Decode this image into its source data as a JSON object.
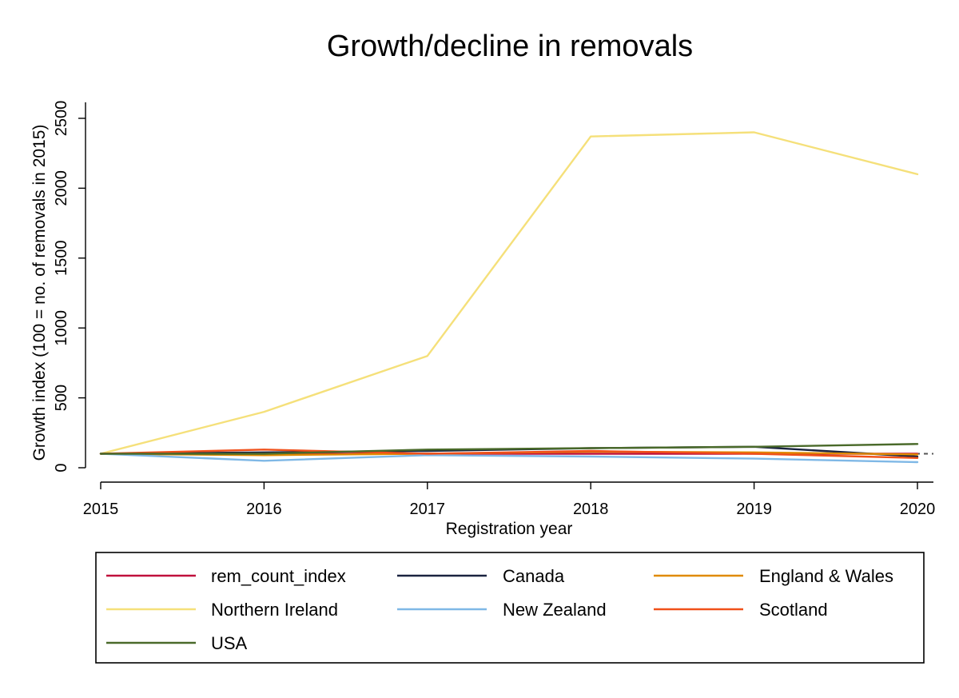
{
  "chart_data": {
    "type": "line",
    "title": "Growth/decline in removals",
    "xlabel": "Registration year",
    "ylabel": "Growth index (100 = no. of removals in 2015)",
    "x": [
      2015,
      2016,
      2017,
      2018,
      2019,
      2020
    ],
    "xticks": [
      "2015",
      "2016",
      "2017",
      "2018",
      "2019",
      "2020"
    ],
    "yticks": [
      "0",
      "500",
      "1000",
      "1500",
      "2000",
      "2500"
    ],
    "xlim": [
      2015,
      2020
    ],
    "ylim": [
      0,
      2500
    ],
    "reference_line": 100,
    "grid": false,
    "legend_position": "bottom",
    "series": [
      {
        "name": "rem_count_index",
        "color": "#c0103c",
        "values": [
          100,
          100,
          100,
          100,
          100,
          100
        ]
      },
      {
        "name": "Canada",
        "color": "#1a2340",
        "values": [
          100,
          110,
          120,
          140,
          150,
          80
        ]
      },
      {
        "name": "England & Wales",
        "color": "#e08a00",
        "values": [
          100,
          90,
          100,
          115,
          110,
          95
        ]
      },
      {
        "name": "Northern Ireland",
        "color": "#f5e07a",
        "values": [
          100,
          400,
          800,
          2370,
          2400,
          2100
        ]
      },
      {
        "name": "New Zealand",
        "color": "#7fb8e6",
        "values": [
          100,
          50,
          90,
          80,
          65,
          40
        ]
      },
      {
        "name": "Scotland",
        "color": "#f0501a",
        "values": [
          100,
          130,
          100,
          120,
          100,
          70
        ]
      },
      {
        "name": "USA",
        "color": "#4a6a2a",
        "values": [
          100,
          100,
          130,
          140,
          150,
          170
        ]
      }
    ]
  }
}
